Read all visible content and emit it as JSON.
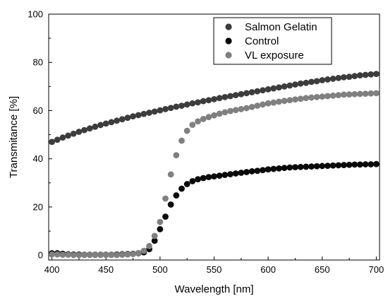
{
  "chart_data": {
    "type": "scatter",
    "title": "",
    "xlabel": "Wavelength [nm]",
    "ylabel": "Transmitance [%]",
    "xlim": [
      397,
      703
    ],
    "ylim": [
      -2,
      100
    ],
    "xticks": [
      400,
      450,
      500,
      550,
      600,
      650,
      700
    ],
    "yticks": [
      0,
      20,
      40,
      60,
      80,
      100
    ],
    "grid": false,
    "legend_position": "top-right",
    "series": [
      {
        "name": "Salmon Gelatin",
        "color": "#3c3c3c",
        "x": [
          400,
          405,
          410,
          415,
          420,
          425,
          430,
          435,
          440,
          445,
          450,
          455,
          460,
          465,
          470,
          475,
          480,
          485,
          490,
          495,
          500,
          505,
          510,
          515,
          520,
          525,
          530,
          535,
          540,
          545,
          550,
          555,
          560,
          565,
          570,
          575,
          580,
          585,
          590,
          595,
          600,
          605,
          610,
          615,
          620,
          625,
          630,
          635,
          640,
          645,
          650,
          655,
          660,
          665,
          670,
          675,
          680,
          685,
          690,
          695,
          700
        ],
        "y": [
          47,
          47.9,
          48.8,
          49.6,
          50.4,
          51.2,
          51.9,
          52.6,
          53.3,
          54.0,
          54.6,
          55.2,
          55.8,
          56.4,
          57.0,
          57.6,
          58.1,
          58.6,
          59.1,
          59.6,
          60.1,
          60.6,
          61.1,
          61.6,
          62.0,
          62.5,
          63.0,
          63.4,
          63.9,
          64.3,
          64.7,
          65.2,
          65.6,
          66.0,
          66.4,
          66.8,
          67.2,
          67.6,
          68.0,
          68.4,
          68.8,
          69.2,
          69.6,
          70.0,
          70.4,
          70.8,
          71.2,
          71.5,
          71.9,
          72.2,
          72.6,
          72.9,
          73.2,
          73.5,
          73.8,
          74.0,
          74.3,
          74.6,
          74.8,
          75.0,
          75.2
        ]
      },
      {
        "name": "Control",
        "color": "#0a0a0a",
        "x": [
          400,
          405,
          410,
          415,
          420,
          425,
          430,
          435,
          440,
          445,
          450,
          455,
          460,
          465,
          470,
          475,
          480,
          485,
          490,
          495,
          500,
          505,
          510,
          515,
          520,
          525,
          530,
          535,
          540,
          545,
          550,
          555,
          560,
          565,
          570,
          575,
          580,
          585,
          590,
          595,
          600,
          605,
          610,
          615,
          620,
          625,
          630,
          635,
          640,
          645,
          650,
          655,
          660,
          665,
          670,
          675,
          680,
          685,
          690,
          695,
          700
        ],
        "y": [
          0.8,
          0.8,
          0.6,
          0.4,
          0.3,
          0.3,
          0.2,
          0.2,
          0.2,
          0.2,
          0.2,
          0.2,
          0.3,
          0.4,
          0.5,
          0.6,
          0.8,
          1.2,
          2.5,
          6.0,
          10.8,
          16.0,
          21.0,
          24.8,
          27.6,
          29.5,
          30.7,
          31.5,
          32.0,
          32.4,
          32.7,
          33.0,
          33.3,
          33.6,
          33.9,
          34.2,
          34.5,
          34.8,
          35.0,
          35.3,
          35.6,
          35.8,
          36.0,
          36.2,
          36.4,
          36.5,
          36.6,
          36.7,
          36.8,
          36.9,
          37.0,
          37.1,
          37.2,
          37.3,
          37.4,
          37.5,
          37.6,
          37.6,
          37.7,
          37.7,
          37.8
        ]
      },
      {
        "name": "VL exposure",
        "color": "#808080",
        "x": [
          400,
          405,
          410,
          415,
          420,
          425,
          430,
          435,
          440,
          445,
          450,
          455,
          460,
          465,
          470,
          475,
          480,
          485,
          490,
          495,
          500,
          505,
          510,
          515,
          520,
          525,
          530,
          535,
          540,
          545,
          550,
          555,
          560,
          565,
          570,
          575,
          580,
          585,
          590,
          595,
          600,
          605,
          610,
          615,
          620,
          625,
          630,
          635,
          640,
          645,
          650,
          655,
          660,
          665,
          670,
          675,
          680,
          685,
          690,
          695,
          700
        ],
        "y": [
          0.3,
          0.3,
          0.2,
          0.2,
          0.1,
          0.1,
          0.1,
          0.1,
          0.1,
          0.1,
          0.1,
          0.1,
          0.1,
          0.2,
          0.3,
          0.5,
          0.9,
          1.8,
          3.8,
          8.0,
          13.8,
          23.5,
          33.5,
          41.5,
          47.5,
          51.6,
          54.1,
          55.5,
          56.5,
          57.3,
          58.0,
          58.7,
          59.3,
          59.8,
          60.2,
          60.6,
          61.0,
          61.5,
          62.0,
          62.5,
          63.0,
          63.3,
          63.7,
          64.0,
          64.3,
          64.6,
          64.9,
          65.2,
          65.4,
          65.6,
          65.8,
          66.0,
          66.2,
          66.4,
          66.6,
          66.7,
          66.8,
          66.9,
          67.0,
          67.1,
          67.2
        ]
      }
    ]
  }
}
